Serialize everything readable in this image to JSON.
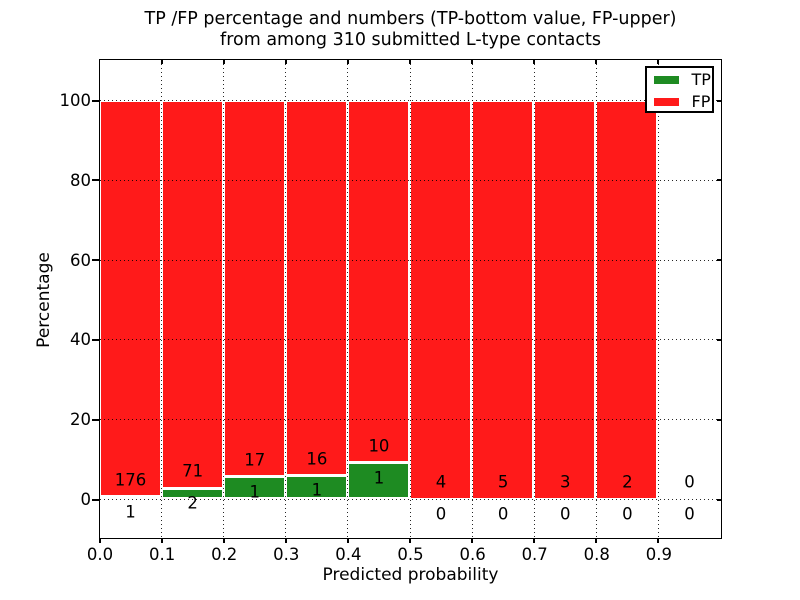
{
  "figure": {
    "title_line1": "TP /FP percentage and numbers (TP-bottom value, FP-upper)",
    "title_line2": "from among 310 submitted L-type contacts",
    "xlabel": "Predicted probability",
    "ylabel": "Percentage"
  },
  "legend": {
    "location": "upper right",
    "items": [
      {
        "label": "TP",
        "color_key": "tp"
      },
      {
        "label": "FP",
        "color_key": "fp"
      }
    ]
  },
  "colors": {
    "tp": "#1E8B22",
    "fp": "#FF1A1A",
    "bar_edge": "#FFFFFF",
    "grid": "#000000",
    "spine": "#000000",
    "text": "#000000",
    "background": "#FFFFFF"
  },
  "chart_data": {
    "type": "bar",
    "stacked": true,
    "normalized": "each bin scaled to 100%",
    "title": "TP /FP percentage and numbers (TP-bottom value, FP-upper) from among 310 submitted L-type contacts",
    "xlabel": "Predicted probability",
    "ylabel": "Percentage",
    "total_contacts": 310,
    "x_bin_edges": [
      0.0,
      0.1,
      0.2,
      0.3,
      0.4,
      0.5,
      0.6,
      0.7,
      0.8,
      0.9,
      1.0
    ],
    "x_tick_labels": [
      "0.0",
      "0.1",
      "0.2",
      "0.3",
      "0.4",
      "0.5",
      "0.6",
      "0.7",
      "0.8",
      "0.9"
    ],
    "y_tick_values": [
      0,
      20,
      40,
      60,
      80,
      100
    ],
    "xlim": [
      0.0,
      1.0
    ],
    "ylim": [
      -9.5,
      110.3
    ],
    "grid": true,
    "grid_style": "dotted",
    "legend_position": "upper right",
    "series": [
      {
        "name": "TP",
        "color": "#1E8B22",
        "counts": [
          1,
          2,
          1,
          1,
          1,
          0,
          0,
          0,
          0,
          0
        ]
      },
      {
        "name": "FP",
        "color": "#FF1A1A",
        "counts": [
          176,
          71,
          17,
          16,
          10,
          4,
          5,
          3,
          2,
          0
        ]
      }
    ],
    "upper_labels_fp": [
      "176",
      "71",
      "17",
      "16",
      "10",
      "4",
      "5",
      "3",
      "2",
      "0"
    ],
    "lower_labels_tp": [
      "1",
      "2",
      "1",
      "1",
      "1",
      "0",
      "0",
      "0",
      "0",
      "0"
    ],
    "tp_percent_per_bin": [
      0.56,
      2.74,
      5.56,
      5.88,
      9.09,
      0,
      0,
      0,
      0,
      null
    ],
    "fp_percent_per_bin": [
      99.44,
      97.26,
      94.44,
      94.12,
      90.91,
      100,
      100,
      100,
      100,
      null
    ]
  }
}
